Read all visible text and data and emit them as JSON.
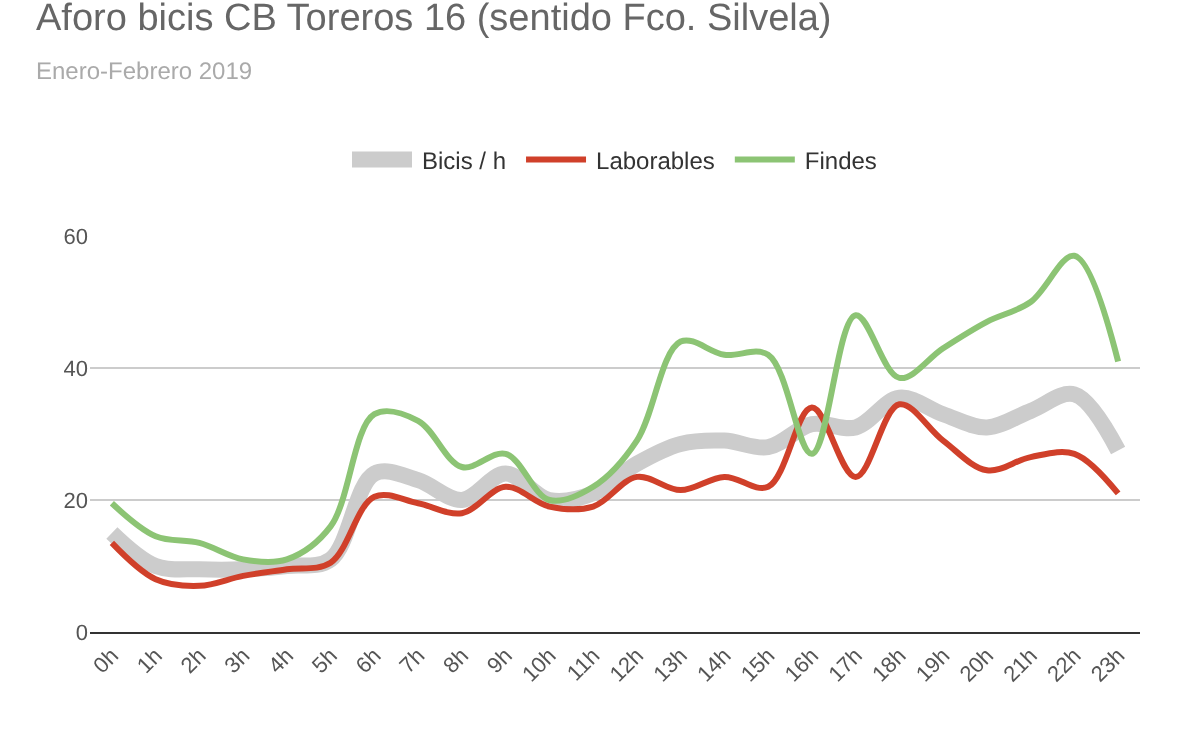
{
  "chart_data": {
    "type": "line",
    "title": "Aforo bicis CB Toreros 16 (sentido Fco. Silvela)",
    "subtitle": "Enero-Febrero 2019",
    "categories": [
      "0h",
      "1h",
      "2h",
      "3h",
      "4h",
      "5h",
      "6h",
      "7h",
      "8h",
      "9h",
      "10h",
      "11h",
      "12h",
      "13h",
      "14h",
      "15h",
      "16h",
      "17h",
      "18h",
      "19h",
      "20h",
      "21h",
      "22h",
      "23h"
    ],
    "series": [
      {
        "name": "Bicis / h",
        "color": "#cccccc",
        "values": [
          15,
          10,
          9.5,
          9.5,
          10,
          11,
          24,
          23,
          20,
          24,
          20,
          21,
          25.5,
          28.5,
          29,
          28,
          31.5,
          31,
          35.5,
          33,
          31,
          33.5,
          36,
          27.5
        ]
      },
      {
        "name": "Laborables",
        "color": "#d0402a",
        "values": [
          13.5,
          8,
          7,
          8.5,
          9.5,
          10.5,
          20.5,
          19.5,
          18,
          22,
          19,
          19,
          23.5,
          21.5,
          23.5,
          22,
          34,
          23.5,
          34.5,
          29,
          24.5,
          26.5,
          27,
          21
        ]
      },
      {
        "name": "Findes",
        "color": "#8cc474",
        "values": [
          19.5,
          14.5,
          13.5,
          11,
          11,
          16,
          33,
          32,
          25,
          27,
          20,
          22,
          29,
          44,
          42,
          42,
          27,
          48,
          38.5,
          43,
          47,
          50,
          57,
          41
        ]
      }
    ],
    "ylim": [
      0,
      60
    ],
    "yticks": [
      0,
      20,
      40,
      60
    ],
    "grid": "y",
    "legend": "top",
    "marker": "none",
    "line_style": "solid"
  }
}
